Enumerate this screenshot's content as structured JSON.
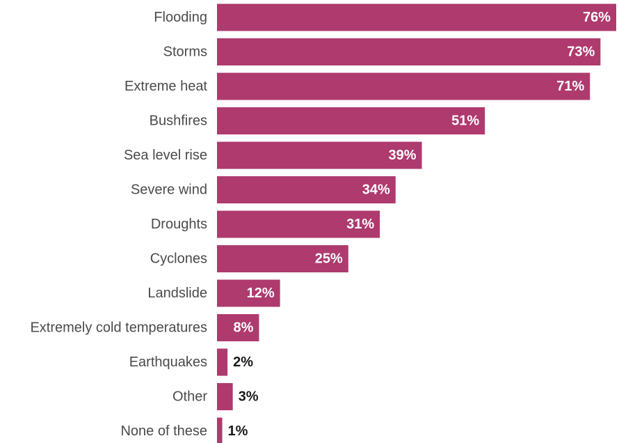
{
  "chart_data": {
    "type": "bar",
    "orientation": "horizontal",
    "categories": [
      "Flooding",
      "Storms",
      "Extreme heat",
      "Bushfires",
      "Sea level rise",
      "Severe wind",
      "Droughts",
      "Cyclones",
      "Landslide",
      "Extremely cold temperatures",
      "Earthquakes",
      "Other",
      "None of these"
    ],
    "values": [
      76,
      73,
      71,
      51,
      39,
      34,
      31,
      25,
      12,
      8,
      2,
      3,
      1
    ],
    "value_labels": [
      "76%",
      "73%",
      "71%",
      "51%",
      "39%",
      "34%",
      "31%",
      "25%",
      "12%",
      "8%",
      "2%",
      "3%",
      "1%"
    ],
    "xlim": [
      0,
      76
    ],
    "grid": false,
    "legend": "none",
    "colors": {
      "bar": "#ae3a6e",
      "label_inside": "#ffffff",
      "label_outside": "#1a1a1a",
      "category_text": "#4a4a4a"
    }
  }
}
